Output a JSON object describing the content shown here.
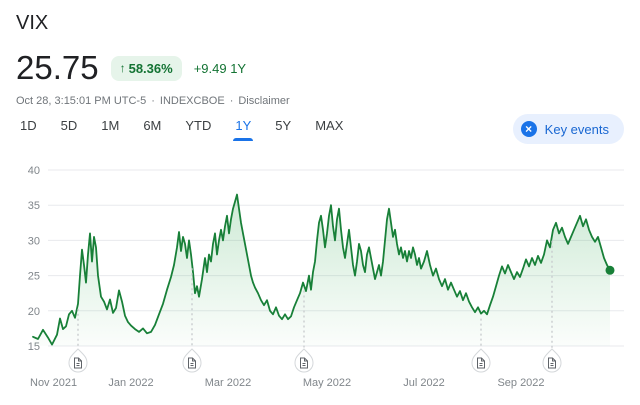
{
  "header": {
    "title": "VIX",
    "price": "25.75",
    "change_arrow": "↑",
    "change_percent": "58.36%",
    "change_abs": "+9.49 1Y",
    "timestamp": "Oct 28, 3:15:01 PM UTC-5",
    "separator": "·",
    "exchange": "INDEXCBOE",
    "disclaimer": "Disclaimer"
  },
  "range_tabs": [
    {
      "label": "1D",
      "active": false
    },
    {
      "label": "5D",
      "active": false
    },
    {
      "label": "1M",
      "active": false
    },
    {
      "label": "6M",
      "active": false
    },
    {
      "label": "YTD",
      "active": false
    },
    {
      "label": "1Y",
      "active": true
    },
    {
      "label": "5Y",
      "active": false
    },
    {
      "label": "MAX",
      "active": false
    }
  ],
  "key_events": {
    "label": "Key events",
    "dismiss_icon": "×"
  },
  "colors": {
    "accent_blue": "#1a73e8",
    "green": "#137333",
    "badge_bg": "#e6f4ea",
    "key_events_bg": "#e8f0fe",
    "key_events_text": "#1967d2",
    "meta_text": "#70757a"
  },
  "chart_data": {
    "type": "area",
    "title": "VIX 1Y price chart",
    "xlabel": "",
    "ylabel": "",
    "grid": "on",
    "legend": "none",
    "ylim": [
      15,
      40
    ],
    "y_ticks": [
      15,
      20,
      25,
      30,
      35,
      40
    ],
    "x_domain": [
      30,
      624
    ],
    "x_ticks": [
      {
        "label": "Nov 2021",
        "pos": 30
      },
      {
        "label": "Jan 2022",
        "pos": 131
      },
      {
        "label": "Mar 2022",
        "pos": 228
      },
      {
        "label": "May 2022",
        "pos": 327
      },
      {
        "label": "Jul 2022",
        "pos": 424
      },
      {
        "label": "Sep 2022",
        "pos": 521
      }
    ],
    "line_color": "#188038",
    "fill_color": "#34a853",
    "grid_color": "#e8eaed",
    "axis_text_color": "#80868b",
    "last_value": 25.75,
    "events": [
      {
        "pos": 78,
        "icon": "document-icon"
      },
      {
        "pos": 192,
        "icon": "document-icon"
      },
      {
        "pos": 304,
        "icon": "document-icon"
      },
      {
        "pos": 481,
        "icon": "document-icon"
      },
      {
        "pos": 552,
        "icon": "document-icon"
      }
    ],
    "points": [
      [
        33,
        16.3
      ],
      [
        38,
        16.0
      ],
      [
        43,
        17.3
      ],
      [
        48,
        16.2
      ],
      [
        52,
        15.2
      ],
      [
        57,
        16.6
      ],
      [
        60,
        18.9
      ],
      [
        63,
        17.4
      ],
      [
        66,
        17.8
      ],
      [
        69,
        19.5
      ],
      [
        72,
        20.0
      ],
      [
        75,
        19.0
      ],
      [
        78,
        21.0
      ],
      [
        80,
        25.0
      ],
      [
        82,
        28.7
      ],
      [
        84,
        26.5
      ],
      [
        86,
        24.0
      ],
      [
        88,
        28.0
      ],
      [
        90,
        31.0
      ],
      [
        92,
        27.0
      ],
      [
        94,
        30.5
      ],
      [
        96,
        29.0
      ],
      [
        98,
        25.0
      ],
      [
        101,
        22.0
      ],
      [
        104,
        21.3
      ],
      [
        107,
        20.2
      ],
      [
        110,
        21.6
      ],
      [
        113,
        19.7
      ],
      [
        116,
        20.4
      ],
      [
        119,
        22.9
      ],
      [
        122,
        21.3
      ],
      [
        125,
        19.3
      ],
      [
        128,
        18.4
      ],
      [
        131,
        17.9
      ],
      [
        135,
        17.4
      ],
      [
        139,
        17.0
      ],
      [
        143,
        17.5
      ],
      [
        147,
        16.8
      ],
      [
        151,
        17.0
      ],
      [
        155,
        18.0
      ],
      [
        159,
        19.5
      ],
      [
        163,
        21.0
      ],
      [
        167,
        23.0
      ],
      [
        171,
        24.8
      ],
      [
        174,
        26.5
      ],
      [
        177,
        29.0
      ],
      [
        179,
        31.2
      ],
      [
        181,
        28.5
      ],
      [
        183,
        30.5
      ],
      [
        185,
        29.5
      ],
      [
        187,
        27.5
      ],
      [
        189,
        30.0
      ],
      [
        191,
        28.0
      ],
      [
        193,
        25.5
      ],
      [
        195,
        22.5
      ],
      [
        197,
        23.5
      ],
      [
        199,
        22.0
      ],
      [
        202,
        24.5
      ],
      [
        205,
        27.5
      ],
      [
        207,
        25.5
      ],
      [
        209,
        28.0
      ],
      [
        211,
        27.0
      ],
      [
        213,
        29.5
      ],
      [
        215,
        31.0
      ],
      [
        217,
        28.0
      ],
      [
        219,
        30.0
      ],
      [
        221,
        31.5
      ],
      [
        223,
        30.0
      ],
      [
        225,
        32.0
      ],
      [
        227,
        33.5
      ],
      [
        229,
        31.0
      ],
      [
        231,
        33.0
      ],
      [
        233,
        34.5
      ],
      [
        235,
        35.5
      ],
      [
        237,
        36.5
      ],
      [
        239,
        34.5
      ],
      [
        241,
        32.5
      ],
      [
        243,
        31.0
      ],
      [
        245,
        29.5
      ],
      [
        247,
        28.0
      ],
      [
        249,
        26.5
      ],
      [
        251,
        25.0
      ],
      [
        253,
        24.0
      ],
      [
        255,
        23.3
      ],
      [
        258,
        22.5
      ],
      [
        261,
        21.5
      ],
      [
        264,
        20.8
      ],
      [
        267,
        21.5
      ],
      [
        270,
        20.0
      ],
      [
        273,
        19.5
      ],
      [
        276,
        20.5
      ],
      [
        279,
        19.3
      ],
      [
        282,
        18.8
      ],
      [
        285,
        19.5
      ],
      [
        288,
        18.8
      ],
      [
        291,
        19.2
      ],
      [
        294,
        20.5
      ],
      [
        297,
        21.5
      ],
      [
        300,
        22.5
      ],
      [
        303,
        24.0
      ],
      [
        306,
        22.8
      ],
      [
        309,
        25.0
      ],
      [
        311,
        23.0
      ],
      [
        313,
        25.5
      ],
      [
        315,
        27.0
      ],
      [
        317,
        30.0
      ],
      [
        319,
        32.5
      ],
      [
        321,
        33.5
      ],
      [
        323,
        31.5
      ],
      [
        325,
        29.0
      ],
      [
        327,
        31.0
      ],
      [
        329,
        33.5
      ],
      [
        331,
        35.0
      ],
      [
        333,
        32.0
      ],
      [
        335,
        30.0
      ],
      [
        337,
        33.0
      ],
      [
        339,
        34.5
      ],
      [
        341,
        31.5
      ],
      [
        343,
        29.0
      ],
      [
        345,
        27.5
      ],
      [
        347,
        29.5
      ],
      [
        349,
        31.5
      ],
      [
        351,
        29.0
      ],
      [
        353,
        26.5
      ],
      [
        355,
        25.0
      ],
      [
        357,
        27.0
      ],
      [
        359,
        29.5
      ],
      [
        361,
        28.5
      ],
      [
        363,
        26.5
      ],
      [
        365,
        25.5
      ],
      [
        367,
        28.0
      ],
      [
        369,
        29.0
      ],
      [
        371,
        27.5
      ],
      [
        373,
        26.0
      ],
      [
        375,
        24.5
      ],
      [
        377,
        25.5
      ],
      [
        379,
        26.5
      ],
      [
        381,
        25.0
      ],
      [
        383,
        27.0
      ],
      [
        385,
        30.0
      ],
      [
        387,
        33.0
      ],
      [
        389,
        34.5
      ],
      [
        391,
        32.5
      ],
      [
        393,
        30.5
      ],
      [
        395,
        31.5
      ],
      [
        397,
        29.5
      ],
      [
        399,
        28.0
      ],
      [
        401,
        29.0
      ],
      [
        403,
        27.5
      ],
      [
        405,
        28.5
      ],
      [
        407,
        27.0
      ],
      [
        409,
        28.5
      ],
      [
        411,
        27.5
      ],
      [
        413,
        29.0
      ],
      [
        415,
        28.0
      ],
      [
        417,
        26.5
      ],
      [
        419,
        27.5
      ],
      [
        421,
        26.0
      ],
      [
        424,
        27.0
      ],
      [
        427,
        28.5
      ],
      [
        430,
        26.5
      ],
      [
        433,
        25.0
      ],
      [
        436,
        26.0
      ],
      [
        439,
        24.5
      ],
      [
        442,
        23.5
      ],
      [
        445,
        24.5
      ],
      [
        448,
        23.0
      ],
      [
        451,
        24.0
      ],
      [
        454,
        23.0
      ],
      [
        457,
        22.0
      ],
      [
        460,
        22.8
      ],
      [
        463,
        21.5
      ],
      [
        466,
        22.5
      ],
      [
        469,
        21.3
      ],
      [
        472,
        20.5
      ],
      [
        475,
        19.8
      ],
      [
        478,
        20.5
      ],
      [
        481,
        19.6
      ],
      [
        484,
        20.0
      ],
      [
        487,
        19.5
      ],
      [
        490,
        20.8
      ],
      [
        493,
        22.0
      ],
      [
        496,
        23.5
      ],
      [
        499,
        25.0
      ],
      [
        502,
        26.3
      ],
      [
        505,
        25.3
      ],
      [
        508,
        26.5
      ],
      [
        511,
        25.5
      ],
      [
        514,
        24.5
      ],
      [
        517,
        25.5
      ],
      [
        520,
        24.8
      ],
      [
        523,
        26.0
      ],
      [
        526,
        27.3
      ],
      [
        529,
        26.3
      ],
      [
        532,
        27.5
      ],
      [
        535,
        26.5
      ],
      [
        538,
        27.8
      ],
      [
        541,
        26.8
      ],
      [
        544,
        28.0
      ],
      [
        547,
        30.0
      ],
      [
        550,
        29.0
      ],
      [
        553,
        31.5
      ],
      [
        556,
        32.5
      ],
      [
        559,
        31.0
      ],
      [
        562,
        31.8
      ],
      [
        565,
        30.5
      ],
      [
        568,
        29.5
      ],
      [
        571,
        30.5
      ],
      [
        574,
        31.5
      ],
      [
        577,
        32.5
      ],
      [
        580,
        33.5
      ],
      [
        583,
        32.0
      ],
      [
        586,
        33.0
      ],
      [
        589,
        31.5
      ],
      [
        592,
        30.5
      ],
      [
        595,
        29.8
      ],
      [
        598,
        30.5
      ],
      [
        601,
        29.0
      ],
      [
        604,
        27.5
      ],
      [
        607,
        26.5
      ],
      [
        610,
        25.75
      ]
    ]
  }
}
